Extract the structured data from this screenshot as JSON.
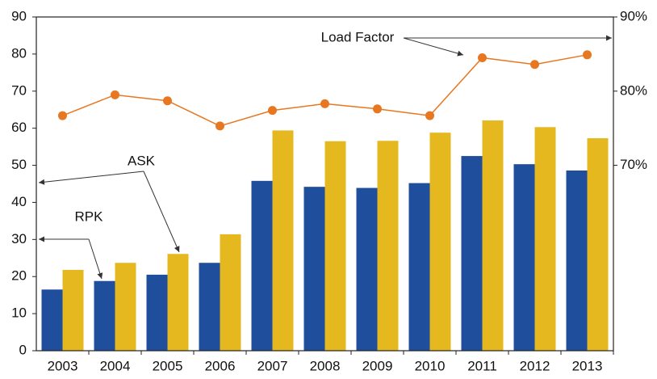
{
  "chart_data": {
    "type": "bar",
    "categories": [
      "2003",
      "2004",
      "2005",
      "2006",
      "2007",
      "2008",
      "2009",
      "2010",
      "2011",
      "2012",
      "2013"
    ],
    "series": [
      {
        "name": "RPK",
        "color": "#1f4e9c",
        "values": [
          16.5,
          18.8,
          20.5,
          23.7,
          45.8,
          44.2,
          43.9,
          45.2,
          52.5,
          50.3,
          48.6
        ]
      },
      {
        "name": "ASK",
        "color": "#e6b820",
        "values": [
          21.8,
          23.7,
          26.1,
          31.4,
          59.4,
          56.5,
          56.6,
          58.8,
          62.1,
          60.3,
          57.3
        ]
      },
      {
        "name": "Load Factor",
        "color": "#e87722",
        "type": "line",
        "axis": "y2",
        "values": [
          76.7,
          79.5,
          78.7,
          75.3,
          77.4,
          78.3,
          77.6,
          76.7,
          84.5,
          83.6,
          84.9
        ]
      }
    ],
    "ylim": [
      0,
      90
    ],
    "yticks": [
      0,
      10,
      20,
      30,
      40,
      50,
      60,
      70,
      80,
      90
    ],
    "y2lim": [
      45,
      90
    ],
    "y2ticks": [
      {
        "value": 70,
        "label": "70%"
      },
      {
        "value": 80,
        "label": "80%"
      },
      {
        "value": 90,
        "label": "90%"
      }
    ],
    "grid": false
  }
}
